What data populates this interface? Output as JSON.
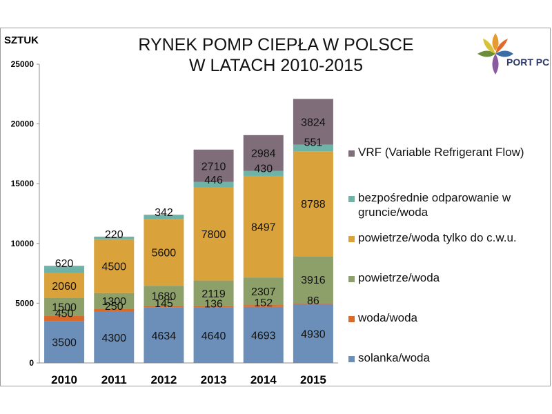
{
  "chart_data": {
    "type": "bar",
    "stacked": true,
    "title": "RYNEK POMP CIEPŁA W POLSCE\nW LATACH 2010-2015",
    "ylabel": "SZTUK",
    "xlabel": "",
    "ylim": [
      0,
      25000
    ],
    "yticks": [
      0,
      5000,
      10000,
      15000,
      20000,
      25000
    ],
    "categories": [
      "2010",
      "2011",
      "2012",
      "2013",
      "2014",
      "2015"
    ],
    "legend_position": "right",
    "grid": false,
    "series": [
      {
        "name": "solanka/woda",
        "color": "#6b8fb8",
        "values": [
          3500,
          4300,
          4634,
          4640,
          4693,
          4930
        ]
      },
      {
        "name": "woda/woda",
        "color": "#d86a2a",
        "values": [
          450,
          250,
          145,
          136,
          152,
          86
        ]
      },
      {
        "name": "powietrze/woda",
        "color": "#8ea06a",
        "values": [
          1500,
          1300,
          1680,
          2119,
          2307,
          3916
        ]
      },
      {
        "name": "powietrze/woda tylko do c.w.u.",
        "color": "#d9a23a",
        "values": [
          2060,
          4500,
          5600,
          7800,
          8497,
          8788
        ]
      },
      {
        "name": "bezpośrednie odparowanie w gruncie/woda",
        "color": "#6fb3a8",
        "values": [
          620,
          220,
          342,
          446,
          430,
          551
        ]
      },
      {
        "name": "VRF (Variable Refrigerant Flow)",
        "color": "#7f6e7a",
        "values": [
          0,
          0,
          0,
          2710,
          2984,
          3824
        ]
      }
    ]
  },
  "logo": {
    "text": "PORT PC"
  }
}
